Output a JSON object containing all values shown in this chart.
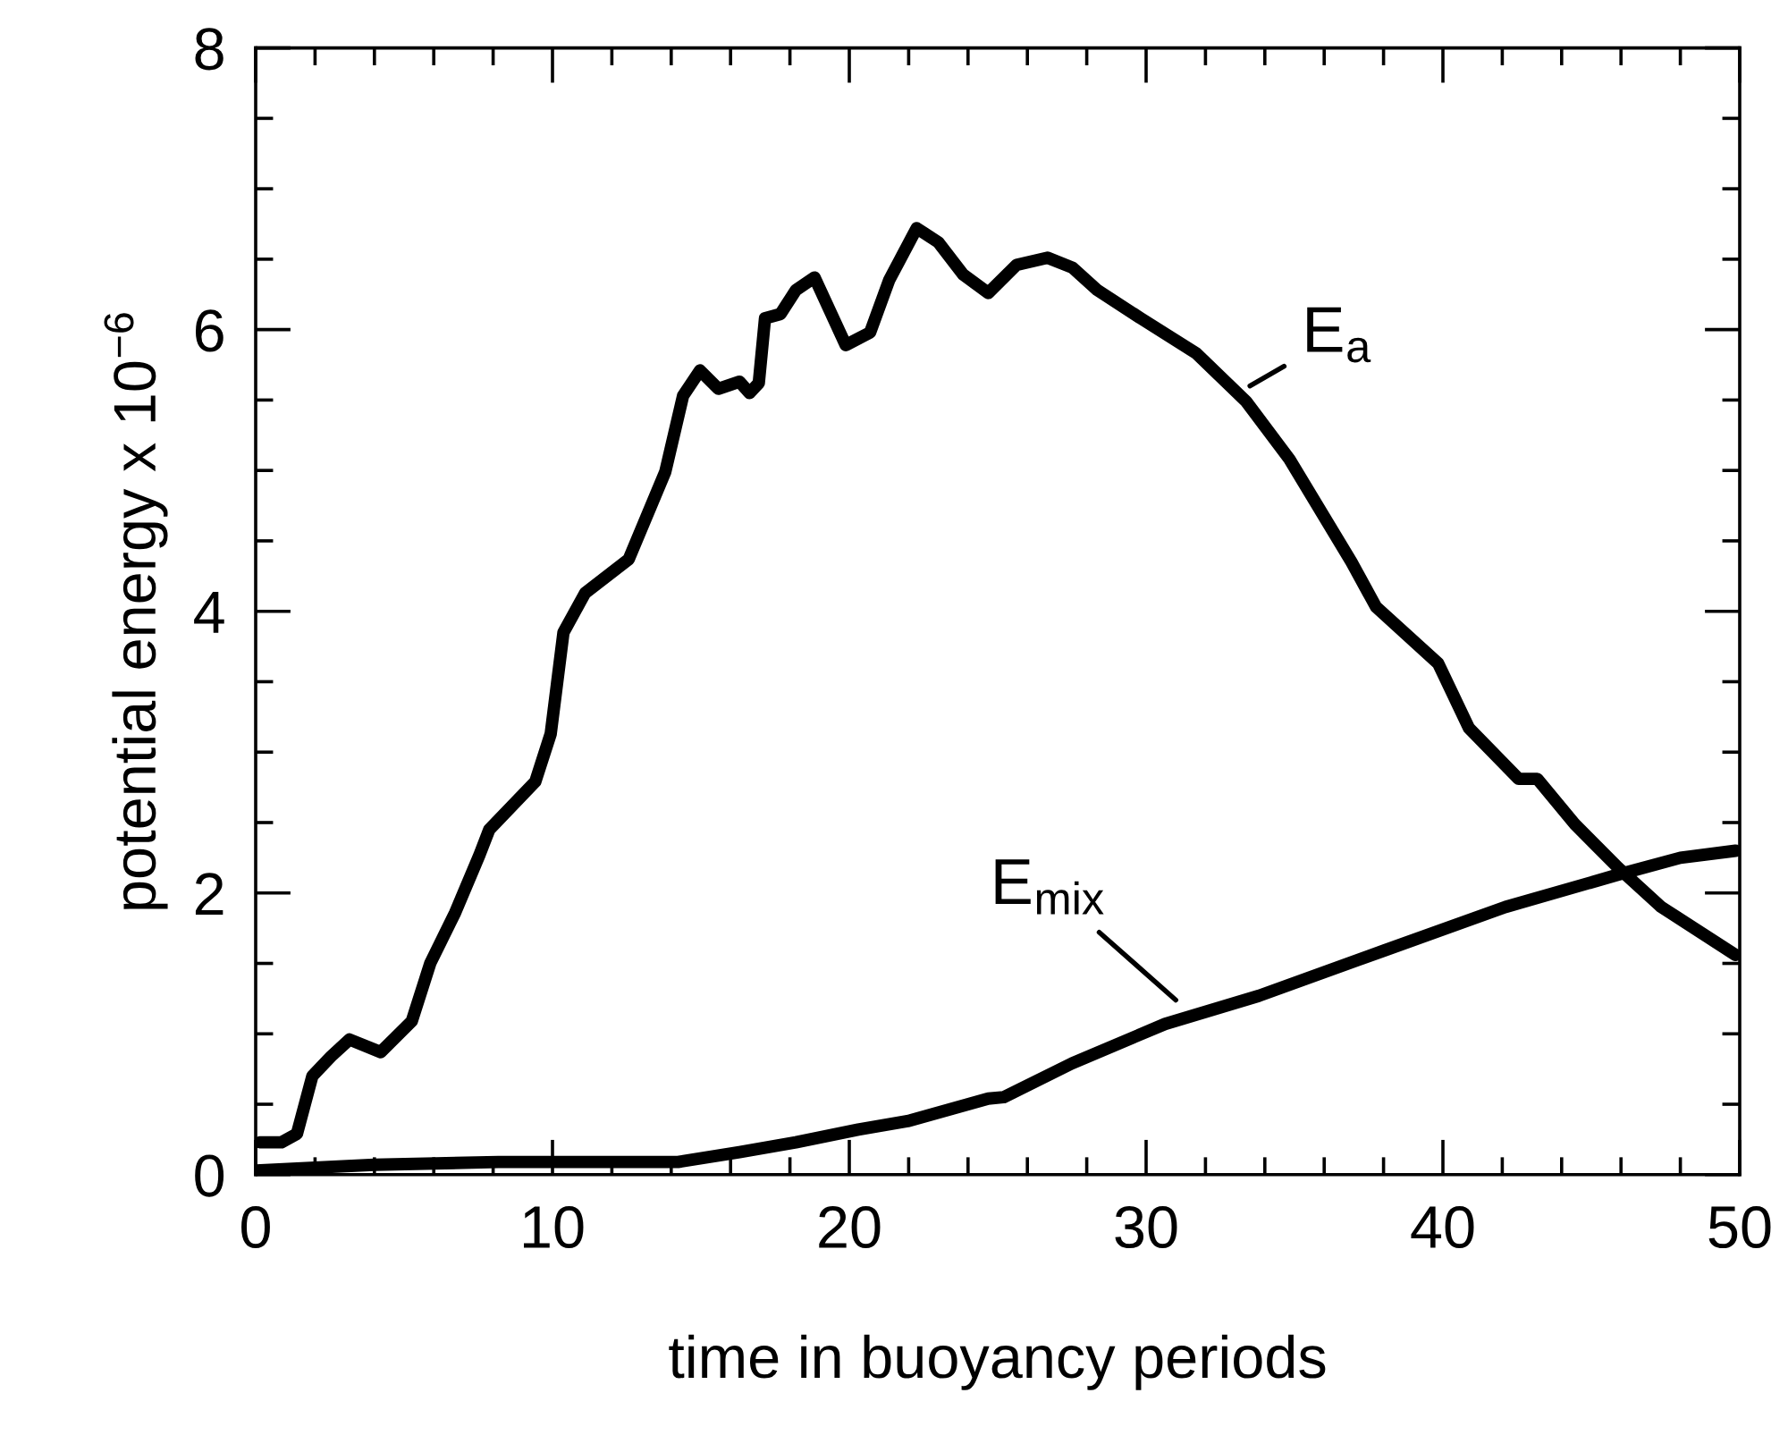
{
  "chart_data": {
    "type": "line",
    "xlabel": "time in buoyancy periods",
    "ylabel": "potential energy x 10$^{−6}$",
    "xlim": [
      0,
      50
    ],
    "ylim": [
      0,
      8
    ],
    "xticks": [
      0,
      10,
      20,
      30,
      40,
      50
    ],
    "yticks": [
      0,
      2,
      4,
      6,
      8
    ],
    "grid": false,
    "legend": false,
    "marker": "none",
    "line_style": "solid",
    "series": [
      {
        "color": "#000000",
        "x": [
          0.14,
          0.87,
          1.39,
          1.91,
          2.54,
          3.16,
          4.21,
          5.26,
          5.88,
          6.72,
          7.54,
          7.87,
          9.42,
          9.94,
          10.37,
          11.1,
          12.57,
          13.8,
          14.4,
          14.97,
          15.59,
          16.3,
          16.64,
          16.95,
          17.16,
          17.68,
          18.2,
          18.83,
          19.88,
          20.7,
          21.34,
          22.27,
          23.0,
          23.84,
          24.68,
          25.64,
          26.68,
          27.52,
          28.36,
          29.82,
          31.7,
          33.37,
          34.83,
          36.92,
          37.75,
          39.84,
          40.88,
          42.55,
          43.18,
          44.44,
          45.9,
          47.36,
          49.86
        ],
        "values": [
          0.23,
          0.23,
          0.29,
          0.7,
          0.84,
          0.96,
          0.87,
          1.09,
          1.5,
          1.86,
          2.27,
          2.45,
          2.79,
          3.13,
          3.85,
          4.13,
          4.37,
          4.99,
          5.53,
          5.71,
          5.58,
          5.63,
          5.55,
          5.62,
          6.08,
          6.11,
          6.28,
          6.37,
          5.89,
          5.98,
          6.35,
          6.72,
          6.62,
          6.39,
          6.26,
          6.46,
          6.51,
          6.44,
          6.28,
          6.08,
          5.83,
          5.49,
          5.08,
          4.35,
          4.03,
          3.63,
          3.17,
          2.81,
          2.81,
          2.49,
          2.18,
          1.9,
          1.56
        ]
      },
      {
        "color": "#000000",
        "x": [
          0.0,
          4.0,
          8.18,
          14.23,
          16.3,
          18.2,
          20.3,
          21.96,
          24.68,
          25.2,
          27.5,
          30.64,
          33.8,
          38.0,
          42.1,
          45.9,
          48.0,
          49.86
        ],
        "values": [
          0.03,
          0.07,
          0.09,
          0.09,
          0.16,
          0.23,
          0.32,
          0.38,
          0.54,
          0.55,
          0.79,
          1.07,
          1.27,
          1.59,
          1.9,
          2.13,
          2.25,
          2.3
        ]
      }
    ],
    "annotations": [
      "E$_{a}$",
      "E$_{mix}$"
    ]
  }
}
